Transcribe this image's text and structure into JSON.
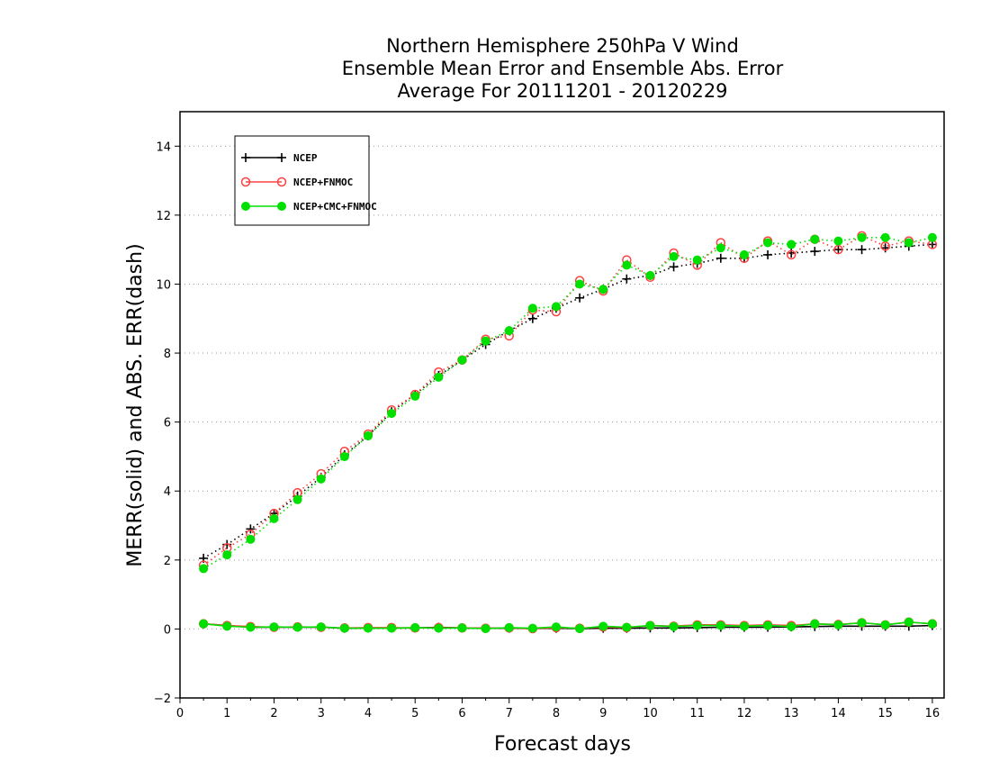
{
  "chart_data": {
    "type": "line",
    "title": [
      "Northern Hemisphere 250hPa V Wind",
      "Ensemble Mean Error and Ensemble Abs. Error",
      "Average For 20111201 - 20120229"
    ],
    "xlabel": "Forecast days",
    "ylabel": "MERR(solid) and ABS. ERR(dash)",
    "xlim": [
      0,
      16.25
    ],
    "ylim": [
      -2,
      15
    ],
    "xticks": [
      0,
      1,
      2,
      3,
      4,
      5,
      6,
      7,
      8,
      9,
      10,
      11,
      12,
      13,
      14,
      15,
      16
    ],
    "yticks": [
      -2,
      0,
      2,
      4,
      6,
      8,
      10,
      12,
      14
    ],
    "grid": "horizontal dotted",
    "legend_position": "top-left",
    "x": [
      0.5,
      1.0,
      1.5,
      2.0,
      2.5,
      3.0,
      3.5,
      4.0,
      4.5,
      5.0,
      5.5,
      6.0,
      6.5,
      7.0,
      7.5,
      8.0,
      8.5,
      9.0,
      9.5,
      10.0,
      10.5,
      11.0,
      11.5,
      12.0,
      12.5,
      13.0,
      13.5,
      14.0,
      14.5,
      15.0,
      15.5,
      16.0
    ],
    "series": [
      {
        "name": "NCEP",
        "color": "#000000",
        "marker": "plus",
        "abs_err": [
          2.05,
          2.45,
          2.9,
          3.35,
          3.85,
          4.4,
          5.05,
          5.6,
          6.3,
          6.8,
          7.35,
          7.8,
          8.25,
          8.65,
          9.0,
          9.3,
          9.6,
          9.85,
          10.15,
          10.25,
          10.5,
          10.6,
          10.75,
          10.75,
          10.85,
          10.9,
          10.95,
          11.0,
          11.0,
          11.05,
          11.1,
          11.15
        ],
        "mean_err": [
          0.15,
          0.1,
          0.05,
          0.05,
          0.05,
          0.05,
          0.02,
          0.03,
          0.03,
          0.03,
          0.05,
          0.03,
          0.02,
          0.02,
          0.01,
          0.02,
          0.01,
          0.02,
          0.02,
          0.03,
          0.03,
          0.04,
          0.05,
          0.05,
          0.05,
          0.06,
          0.07,
          0.08,
          0.08,
          0.08,
          0.08,
          0.1
        ]
      },
      {
        "name": "NCEP+FNMOC",
        "color": "#ff4040",
        "marker": "open-circle",
        "abs_err": [
          1.85,
          2.35,
          2.75,
          3.35,
          3.95,
          4.5,
          5.15,
          5.65,
          6.35,
          6.8,
          7.45,
          7.8,
          8.4,
          8.5,
          9.25,
          9.2,
          10.1,
          9.8,
          10.7,
          10.2,
          10.9,
          10.55,
          11.2,
          10.75,
          11.25,
          10.85,
          11.3,
          11.0,
          11.4,
          11.1,
          11.25,
          11.15
        ],
        "mean_err": [
          0.15,
          0.1,
          0.07,
          0.05,
          0.06,
          0.05,
          0.03,
          0.04,
          0.04,
          0.03,
          0.04,
          0.03,
          0.02,
          0.03,
          0.01,
          0.04,
          0.02,
          0.06,
          0.04,
          0.1,
          0.08,
          0.12,
          0.12,
          0.1,
          0.12,
          0.1,
          0.15,
          0.13,
          0.18,
          0.12,
          0.2,
          0.15
        ]
      },
      {
        "name": "NCEP+CMC+FNMOC",
        "color": "#00e000",
        "marker": "filled-circle",
        "abs_err": [
          1.75,
          2.15,
          2.6,
          3.2,
          3.75,
          4.35,
          5.0,
          5.6,
          6.25,
          6.75,
          7.3,
          7.8,
          8.35,
          8.65,
          9.3,
          9.35,
          10.0,
          9.85,
          10.55,
          10.25,
          10.8,
          10.7,
          11.05,
          10.85,
          11.2,
          11.15,
          11.3,
          11.25,
          11.35,
          11.35,
          11.2,
          11.35
        ],
        "mean_err": [
          0.15,
          0.08,
          0.05,
          0.06,
          0.05,
          0.06,
          0.02,
          0.02,
          0.02,
          0.04,
          0.02,
          0.03,
          0.01,
          0.04,
          0.02,
          0.06,
          0.01,
          0.08,
          0.05,
          0.1,
          0.07,
          0.1,
          0.1,
          0.08,
          0.1,
          0.07,
          0.15,
          0.12,
          0.18,
          0.12,
          0.2,
          0.15
        ]
      }
    ]
  }
}
